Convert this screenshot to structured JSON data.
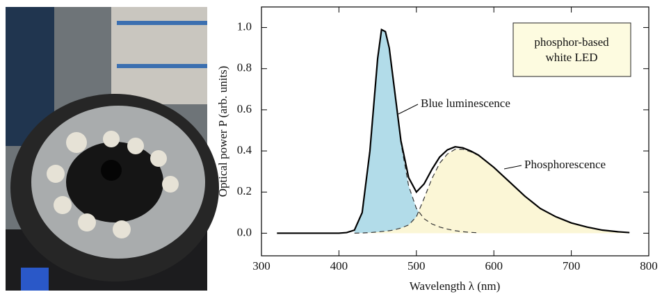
{
  "chart_data": {
    "type": "line",
    "xlabel": "Wavelength λ (nm)",
    "ylabel": "Optical power P (arb. units)",
    "annotations": [
      "Blue luminescence",
      "Phosphorescence"
    ],
    "box_text": [
      "phosphor-based",
      "white LED"
    ],
    "x": [
      320,
      400,
      410,
      420,
      430,
      440,
      450,
      455,
      460,
      465,
      470,
      480,
      490,
      500,
      510,
      520,
      530,
      540,
      550,
      560,
      570,
      580,
      600,
      620,
      640,
      660,
      680,
      700,
      720,
      740,
      760,
      775
    ],
    "series": [
      {
        "color": "#000000",
        "style": "solid",
        "values": [
          0,
          0,
          0.003,
          0.015,
          0.1,
          0.4,
          0.85,
          0.99,
          0.98,
          0.9,
          0.75,
          0.45,
          0.27,
          0.2,
          0.24,
          0.31,
          0.37,
          0.405,
          0.42,
          0.415,
          0.4,
          0.38,
          0.32,
          0.25,
          0.18,
          0.12,
          0.08,
          0.05,
          0.03,
          0.015,
          0.007,
          0.003
        ]
      },
      {
        "color": "#333333",
        "style": "dashed",
        "fill": "#9fd3e3",
        "values": [
          null,
          null,
          null,
          0.015,
          0.1,
          0.4,
          0.85,
          0.99,
          0.98,
          0.9,
          0.75,
          0.44,
          0.23,
          0.12,
          0.07,
          0.045,
          0.03,
          0.02,
          0.012,
          0.007,
          0.004,
          0.002,
          null,
          null,
          null,
          null,
          null,
          null,
          null,
          null,
          null,
          null
        ]
      },
      {
        "color": "#333333",
        "style": "dashed",
        "fill": "#fbf6d6",
        "values": [
          null,
          null,
          null,
          0,
          0.001,
          0.003,
          0.006,
          0.008,
          0.01,
          0.012,
          0.015,
          0.025,
          0.04,
          0.08,
          0.17,
          0.265,
          0.34,
          0.385,
          0.408,
          0.408,
          0.396,
          0.378,
          0.32,
          0.25,
          0.18,
          0.12,
          0.08,
          0.05,
          0.03,
          0.015,
          0.007,
          0.003
        ]
      }
    ],
    "xlim": [
      300,
      800
    ],
    "ylim": [
      -0.11,
      1.1
    ],
    "xticks": [
      300,
      400,
      500,
      600,
      700,
      800
    ],
    "yticks": [
      {
        "value": 0,
        "label": "0.0"
      },
      {
        "value": 0.2,
        "label": "0.2"
      },
      {
        "value": 0.4,
        "label": "0.4"
      },
      {
        "value": 0.6,
        "label": "0.6"
      },
      {
        "value": 0.8,
        "label": "0.8"
      },
      {
        "value": 1,
        "label": "1.0"
      }
    ]
  }
}
